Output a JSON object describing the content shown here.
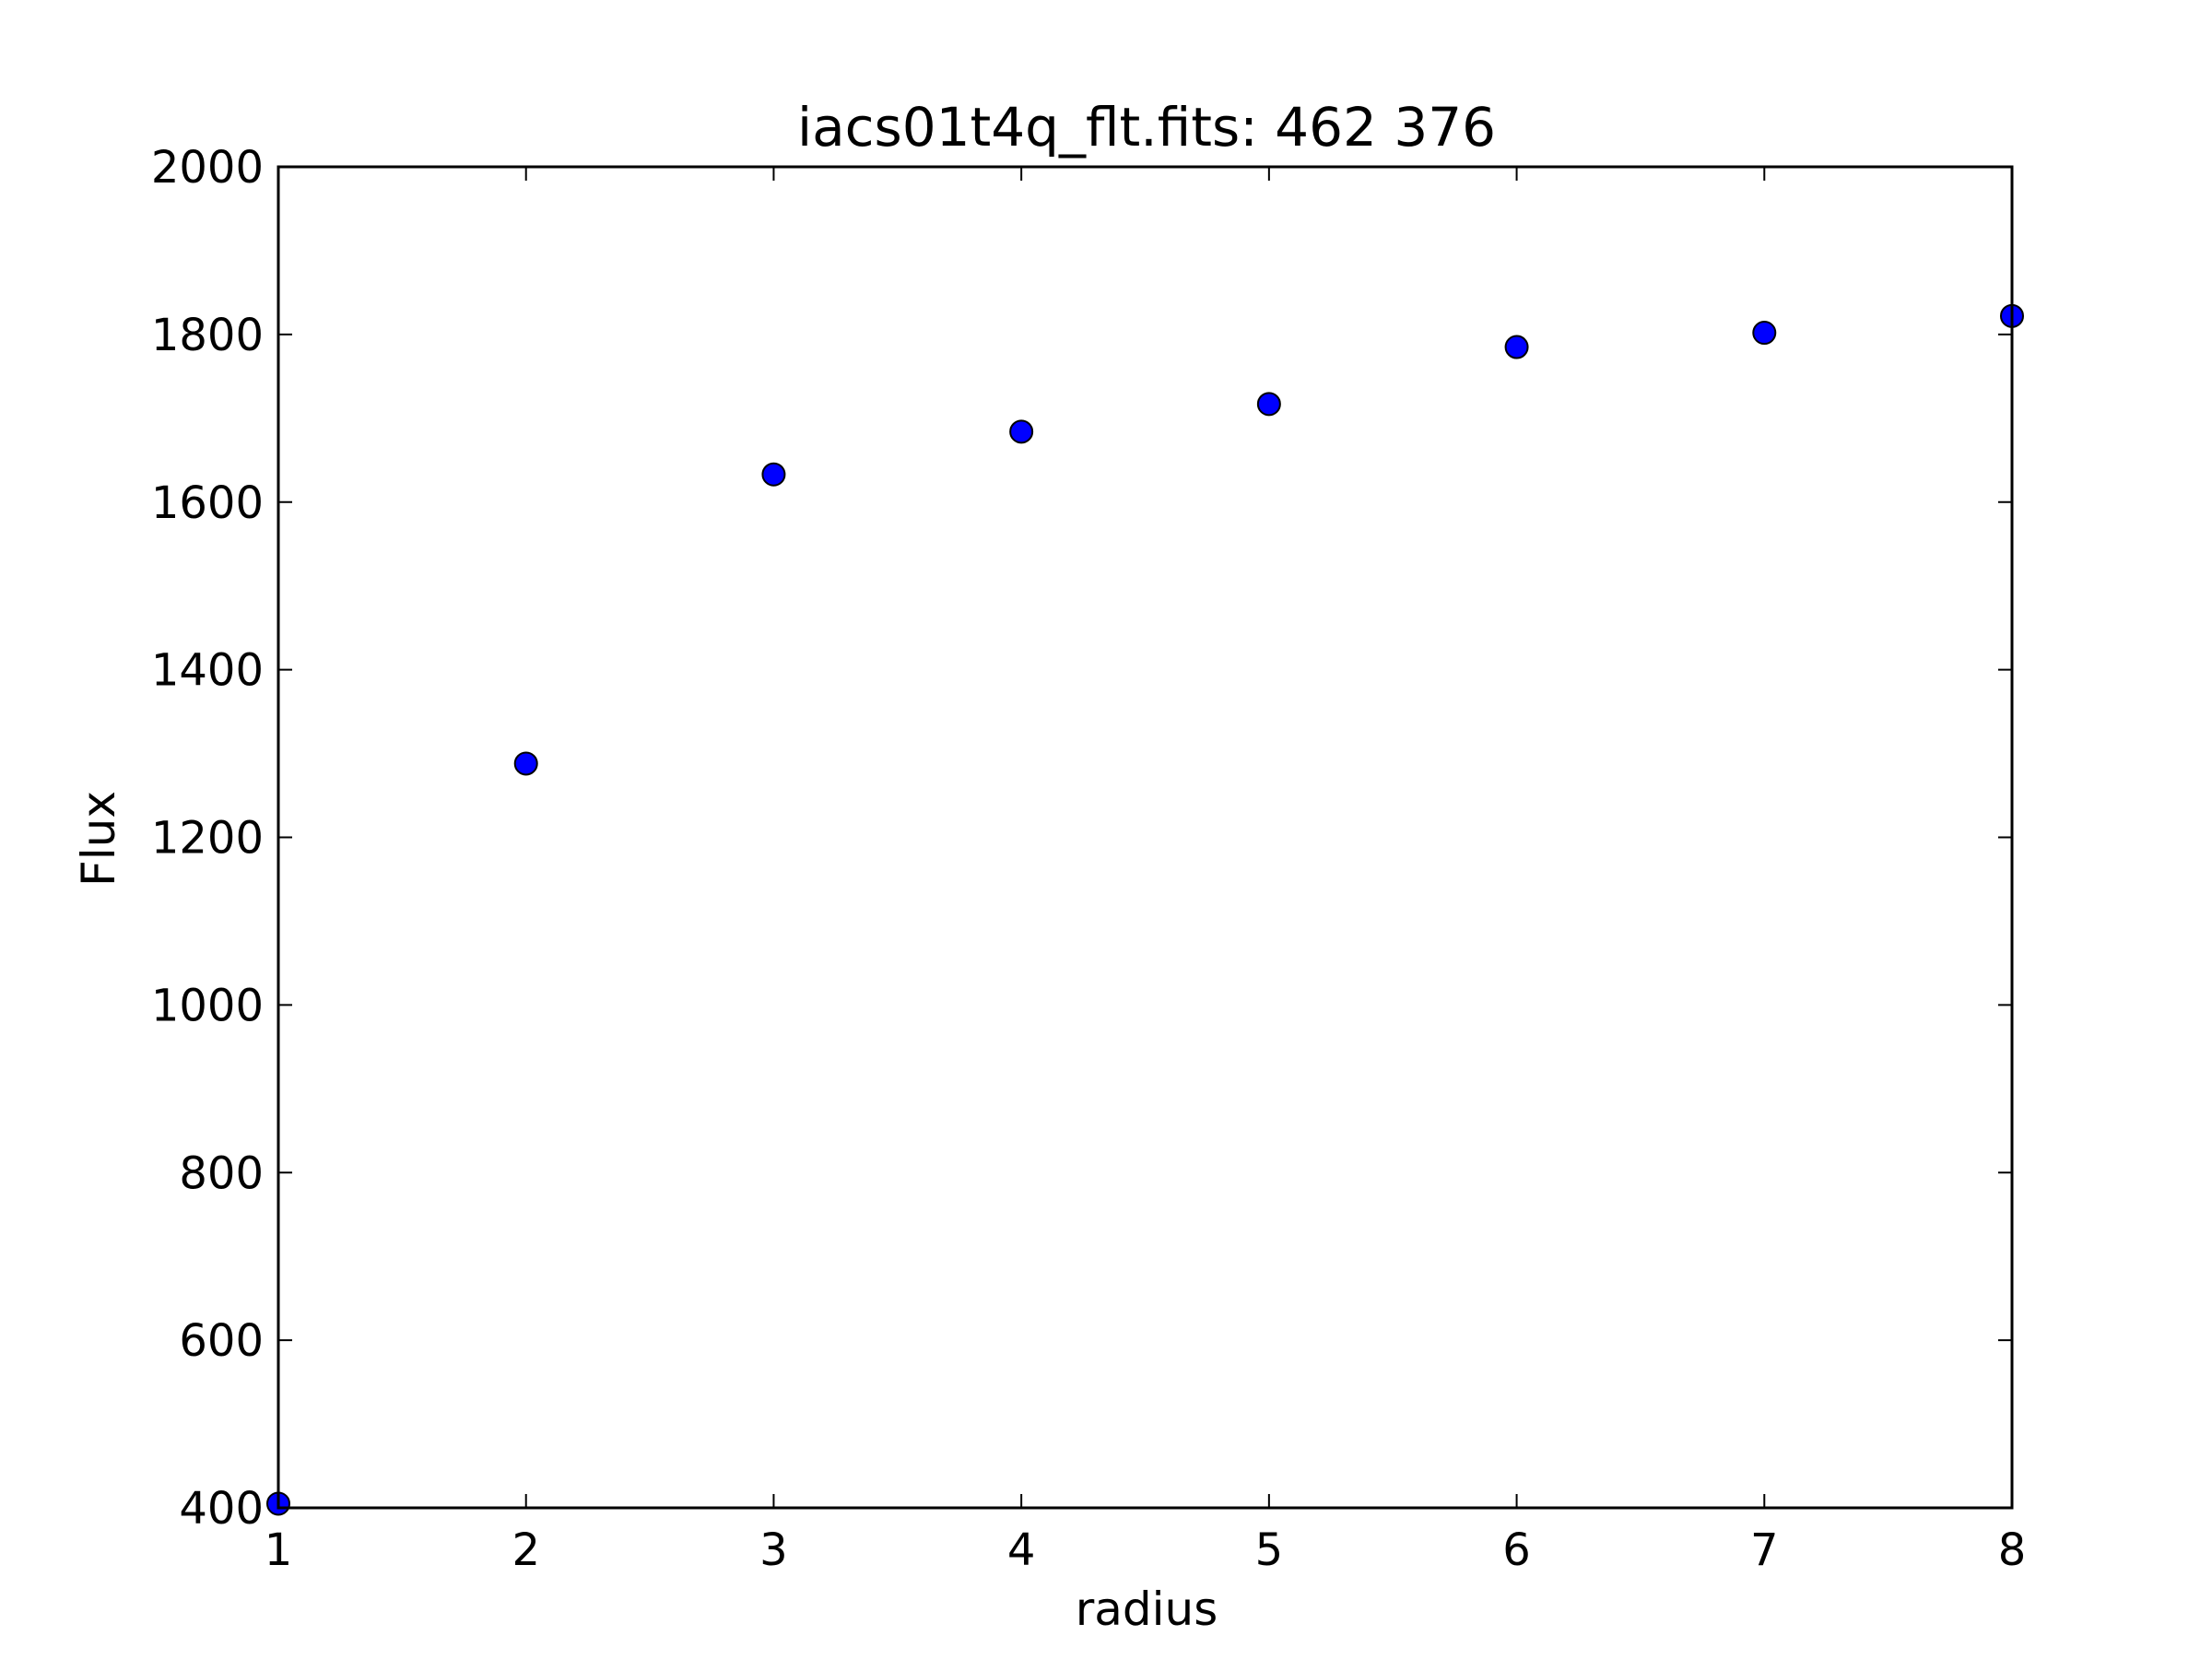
{
  "chart_data": {
    "type": "scatter",
    "title": "iacs01t4q_flt.fits: 462 376",
    "xlabel": "radius",
    "ylabel": "Flux",
    "xlim": [
      1,
      8
    ],
    "ylim": [
      400,
      2000
    ],
    "xticks": [
      1,
      2,
      3,
      4,
      5,
      6,
      7,
      8
    ],
    "yticks": [
      400,
      600,
      800,
      1000,
      1200,
      1400,
      1600,
      1800,
      2000
    ],
    "grid": false,
    "series": [
      {
        "x": [
          1,
          2,
          3,
          4,
          5,
          6,
          7,
          8
        ],
        "y": [
          405,
          1288,
          1633,
          1684,
          1717,
          1785,
          1802,
          1822
        ],
        "marker": "circle",
        "color": "#0000ff",
        "edge_color": "#000000"
      }
    ]
  }
}
